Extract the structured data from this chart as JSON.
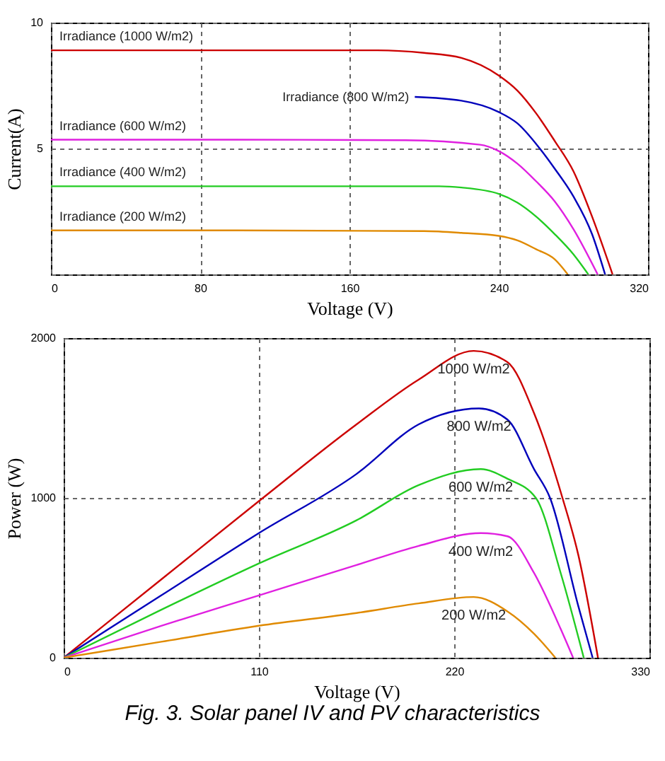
{
  "chart_data": [
    {
      "type": "line",
      "xlabel": "Voltage (V)",
      "ylabel": "Current(A)",
      "xlim": [
        0,
        320
      ],
      "ylim": [
        0,
        10
      ],
      "xticks": [
        0,
        80,
        160,
        240,
        320
      ],
      "yticks": [
        {
          "value": 0,
          "label": null
        },
        5,
        10
      ],
      "grid": true,
      "series": [
        {
          "name": "Irradiance (1000 W/m2)",
          "color": "#cc0000",
          "x": [
            0,
            100,
            175,
            200,
            220,
            240,
            250,
            260,
            270,
            280,
            290,
            301
          ],
          "values": [
            8.9,
            8.9,
            8.9,
            8.8,
            8.6,
            7.9,
            7.3,
            6.4,
            5.3,
            4.1,
            2.3,
            0
          ]
        },
        {
          "name": "Irradiance (800 W/m2)",
          "color": "#0000bb",
          "x": [
            195,
            220,
            240,
            250,
            262,
            270,
            280,
            290,
            297
          ],
          "values": [
            7.05,
            6.9,
            6.45,
            6.0,
            5.0,
            4.2,
            3.1,
            1.6,
            0
          ]
        },
        {
          "name": "Irradiance (600 W/m2)",
          "color": "#e020e0",
          "x": [
            0,
            100,
            190,
            230,
            240,
            250,
            260,
            270,
            280,
            293
          ],
          "values": [
            5.35,
            5.35,
            5.33,
            5.15,
            4.9,
            4.4,
            3.7,
            2.9,
            1.8,
            0
          ]
        },
        {
          "name": "Irradiance (400 W/m2)",
          "color": "#22cc22",
          "x": [
            0,
            100,
            208,
            220,
            240,
            250,
            260,
            270,
            280,
            288
          ],
          "values": [
            3.5,
            3.5,
            3.5,
            3.45,
            3.2,
            2.85,
            2.3,
            1.6,
            0.8,
            0
          ]
        },
        {
          "name": "Irradiance (200 W/m2)",
          "color": "#e08a00",
          "x": [
            0,
            100,
            200,
            220,
            240,
            250,
            260,
            270,
            277
          ],
          "values": [
            1.75,
            1.75,
            1.72,
            1.65,
            1.53,
            1.35,
            1.0,
            0.6,
            0
          ]
        }
      ]
    },
    {
      "type": "line",
      "xlabel": "Voltage (V)",
      "ylabel": "Power (W)",
      "xlim": [
        0,
        330
      ],
      "ylim": [
        0,
        2000
      ],
      "xticks": [
        0,
        110,
        220,
        330
      ],
      "yticks": [
        0,
        1000,
        2000
      ],
      "grid": true,
      "annotations": [
        "Fig. 3. Solar panel IV and PV characteristics"
      ],
      "series": [
        {
          "name": "1000 W/m2",
          "color": "#cc0000",
          "x": [
            0,
            55,
            110,
            165,
            200,
            231,
            250,
            265,
            281,
            290,
            301
          ],
          "values": [
            0,
            490,
            980,
            1460,
            1740,
            1920,
            1850,
            1530,
            1000,
            640,
            0
          ]
        },
        {
          "name": "800 W/m2",
          "color": "#0000bb",
          "x": [
            0,
            55,
            110,
            165,
            200,
            234,
            250,
            265,
            274,
            290,
            298
          ],
          "values": [
            0,
            390,
            780,
            1150,
            1460,
            1560,
            1490,
            1180,
            1000,
            320,
            0
          ]
        },
        {
          "name": "600 W/m2",
          "color": "#22cc22",
          "x": [
            0,
            55,
            110,
            165,
            200,
            235,
            250,
            266,
            280,
            293
          ],
          "values": [
            0,
            300,
            590,
            860,
            1080,
            1180,
            1120,
            1000,
            530,
            0
          ]
        },
        {
          "name": "400 W/m2",
          "color": "#e020e0",
          "x": [
            0,
            55,
            110,
            165,
            200,
            235,
            250,
            265,
            280,
            287
          ],
          "values": [
            0,
            200,
            390,
            580,
            700,
            780,
            760,
            530,
            180,
            0
          ]
        },
        {
          "name": "200 W/m2",
          "color": "#e08a00",
          "x": [
            0,
            55,
            110,
            165,
            200,
            231,
            250,
            265,
            277
          ],
          "values": [
            0,
            100,
            200,
            280,
            340,
            380,
            290,
            150,
            0
          ]
        }
      ]
    }
  ]
}
